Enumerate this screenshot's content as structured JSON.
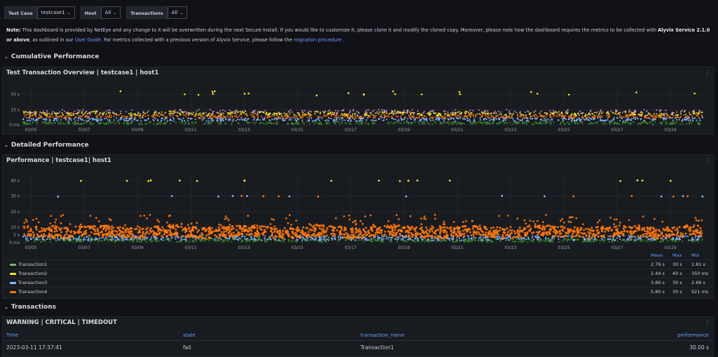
{
  "variables": [
    {
      "label": "Test Case",
      "value": "testcase1"
    },
    {
      "label": "Host",
      "value": "All"
    },
    {
      "label": "Transactions",
      "value": "All"
    }
  ],
  "note": {
    "label": "Note:",
    "text1": "This dashboard is provided by NetEye and any change to it will be overwritten during the next Secure Install. If you would like to customize it, please clone it and modify the cloned copy. Moreover, please note how the dashboard requires the metrics to be collected with",
    "bold": "Alyvix Service 2.1.0 or above",
    "text2": ", as outlined in our",
    "link1": "User Guide",
    "text3": ". For metrics collected with a previous version of Alyvix Service, please follow the",
    "link2": "migration procedure",
    "text4": "."
  },
  "rows": {
    "cumulative": "Cumulative Performance",
    "detailed": "Detailed Performance",
    "transactions": "Transactions"
  },
  "panels": {
    "overview_title": "Test Transaction Overview | testcase1 | host1",
    "performance_title": "Performance | testcase1| host1",
    "table_title": "WARNING | CRITICAL | TIMEDOUT",
    "menu": "⋮"
  },
  "icons": {
    "collapse": "chevron-down-icon",
    "menu": "panel-menu-icon",
    "dropdown": "chevron-down-icon"
  },
  "colors": {
    "transaction1": "#73bf69",
    "transaction2": "#fade2a",
    "transaction3": "#8ab8ff",
    "transaction4": "#ff780a",
    "purple": "#ca95e5",
    "accent": "#6e9fff"
  },
  "legend": {
    "headers": [
      "Mean",
      "Max",
      "Min"
    ],
    "items": [
      {
        "name": "Transaction1",
        "mean": "2.79 s",
        "max": "30 s",
        "min": "1.81 s"
      },
      {
        "name": "Transaction2",
        "mean": "2.44 s",
        "max": "40 s",
        "min": "350 ms"
      },
      {
        "name": "Transaction3",
        "mean": "3.86 s",
        "max": "30 s",
        "min": "2.66 s"
      },
      {
        "name": "Transaction4",
        "mean": "5.80 s",
        "max": "30 s",
        "min": "921 ms"
      }
    ]
  },
  "table": {
    "columns": [
      "Time",
      "state",
      "transaction_name",
      "performance"
    ],
    "rows": [
      {
        "time": "2023-03-11 17:37:41",
        "state": "fail",
        "transaction_name": "Transaction1",
        "performance": "30.00 s"
      }
    ]
  },
  "chart_data": [
    {
      "type": "scatter",
      "title": "Test Transaction Overview | testcase1 | host1",
      "x_ticks": [
        "03/05",
        "03/07",
        "03/09",
        "03/11",
        "03/13",
        "03/15",
        "03/17",
        "03/19",
        "03/21",
        "03/23",
        "03/25",
        "03/27",
        "03/29"
      ],
      "y_ticks": [
        "0 ms",
        "25 s",
        "50 s"
      ],
      "ylim": [
        0,
        60
      ],
      "series": [
        {
          "name": "Transaction1",
          "typical_value": 3
        },
        {
          "name": "Transaction2",
          "typical_value": 18
        },
        {
          "name": "Transaction3",
          "typical_value": 10
        },
        {
          "name": "Transaction4",
          "typical_value": 13
        }
      ]
    },
    {
      "type": "scatter",
      "title": "Performance | testcase1| host1",
      "x_ticks": [
        "03/05",
        "03/07",
        "03/09",
        "03/11",
        "03/13",
        "03/15",
        "03/17",
        "03/19",
        "03/21",
        "03/23",
        "03/25",
        "03/27",
        "03/29"
      ],
      "y_ticks": [
        "0 ms",
        "5 s",
        "10 s",
        "20 s",
        "30 s",
        "40 s"
      ],
      "ylim": [
        0,
        43
      ],
      "series": [
        {
          "name": "Transaction1",
          "mean": 2.79,
          "max": 30,
          "min": 1.81
        },
        {
          "name": "Transaction2",
          "mean": 2.44,
          "max": 40,
          "min": 0.35
        },
        {
          "name": "Transaction3",
          "mean": 3.86,
          "max": 30,
          "min": 2.66
        },
        {
          "name": "Transaction4",
          "mean": 5.8,
          "max": 30,
          "min": 0.921
        }
      ]
    }
  ]
}
